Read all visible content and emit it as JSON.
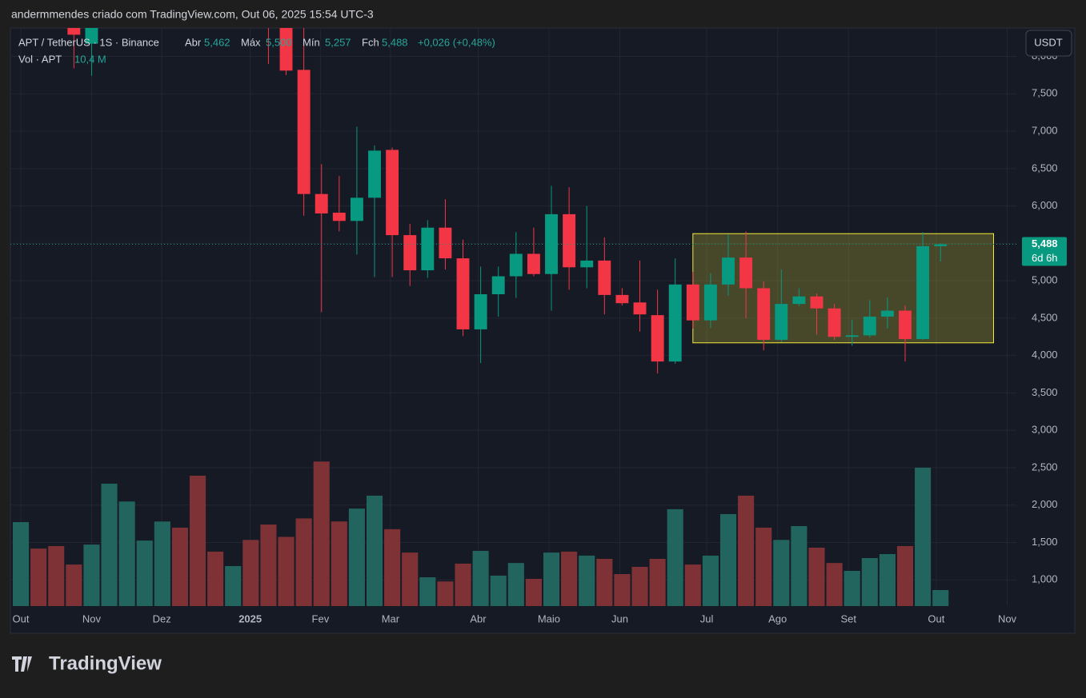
{
  "header": {
    "credit": "andermmendes criado com TradingView.com, Out 06, 2025 15:54 UTC-3",
    "symbol": "APT / TetherUS · 1S · Binance",
    "open_label": "Abr",
    "open": "5,462",
    "high_label": "Máx",
    "high": "5,500",
    "low_label": "Mín",
    "low": "5,257",
    "close_label": "Fch",
    "close": "5,488",
    "change": "+0,026 (+0,48%)",
    "volume_label": "Vol · APT",
    "volume": "10,4 M",
    "currency": "USDT",
    "brand": "TradingView"
  },
  "chart_data": {
    "type": "candlestick",
    "xlim": [
      -0.59,
      56.29
    ],
    "xticks": [
      {
        "value": 0,
        "label": "Out"
      },
      {
        "value": 4,
        "label": "Nov"
      },
      {
        "value": 7.97,
        "label": "Dez"
      },
      {
        "value": 12.97,
        "label": "2025"
      },
      {
        "value": 16.94,
        "label": "Fev"
      },
      {
        "value": 20.9,
        "label": "Mar"
      },
      {
        "value": 25.86,
        "label": "Abr"
      },
      {
        "value": 29.86,
        "label": "Maio"
      },
      {
        "value": 33.87,
        "label": "Jun"
      },
      {
        "value": 38.78,
        "label": "Jul"
      },
      {
        "value": 42.79,
        "label": "Ago"
      },
      {
        "value": 46.8,
        "label": "Set"
      },
      {
        "value": 51.76,
        "label": "Out"
      },
      {
        "value": 55.77,
        "label": "Nov"
      }
    ],
    "ylim": [
      0.65,
      8.38
    ],
    "yticks": [
      {
        "value": 1,
        "label": "1,000"
      },
      {
        "value": 1.5,
        "label": "1,500"
      },
      {
        "value": 2,
        "label": "2,000"
      },
      {
        "value": 2.5,
        "label": "2,500"
      },
      {
        "value": 3,
        "label": "3,000"
      },
      {
        "value": 3.5,
        "label": "3,500"
      },
      {
        "value": 4,
        "label": "4,000"
      },
      {
        "value": 4.5,
        "label": "4,500"
      },
      {
        "value": 5,
        "label": "5,000"
      },
      {
        "value": 5.5,
        "label": "5,500"
      },
      {
        "value": 6,
        "label": "6,000"
      },
      {
        "value": 6.5,
        "label": "6,500"
      },
      {
        "value": 7,
        "label": "7,000"
      },
      {
        "value": 7.5,
        "label": "7,500"
      },
      {
        "value": 8,
        "label": "8,000"
      }
    ],
    "grid": true,
    "up_color": "#089981",
    "down_color": "#f23645",
    "open": [
      null,
      null,
      null,
      9.0,
      8.17,
      null,
      null,
      null,
      null,
      null,
      null,
      null,
      null,
      null,
      8.9,
      8.7,
      7.82,
      6.16,
      5.91,
      5.8,
      6.11,
      6.75,
      5.61,
      5.14,
      5.71,
      5.3,
      4.35,
      4.82,
      5.06,
      5.36,
      5.09,
      5.89,
      5.18,
      5.27,
      4.81,
      4.71,
      4.54,
      3.92,
      4.95,
      4.47,
      4.95,
      5.31,
      4.9,
      4.21,
      4.69,
      4.79,
      4.63,
      4.25,
      4.27,
      4.52,
      4.6,
      4.22,
      5.462
    ],
    "high": [
      null,
      null,
      null,
      9.4,
      9.8,
      null,
      null,
      null,
      null,
      null,
      null,
      null,
      null,
      null,
      9.7,
      8.9,
      8.4,
      6.56,
      6.4,
      7.06,
      6.81,
      6.78,
      5.76,
      5.81,
      6.09,
      5.55,
      5.19,
      5.19,
      5.65,
      5.71,
      6.27,
      6.25,
      6.0,
      5.58,
      4.9,
      5.27,
      4.88,
      5.3,
      5.12,
      5.1,
      5.62,
      5.66,
      4.99,
      5.15,
      4.9,
      4.83,
      4.69,
      4.48,
      4.74,
      4.78,
      4.67,
      5.65,
      5.5
    ],
    "low": [
      null,
      null,
      null,
      7.84,
      7.74,
      null,
      null,
      null,
      null,
      null,
      null,
      null,
      null,
      null,
      7.9,
      7.75,
      5.87,
      4.58,
      5.66,
      5.35,
      5.05,
      5.05,
      4.93,
      5.04,
      5.15,
      4.26,
      3.9,
      4.52,
      4.77,
      5.06,
      4.6,
      4.88,
      4.9,
      4.55,
      4.67,
      4.32,
      3.76,
      3.89,
      4.36,
      4.37,
      4.8,
      4.5,
      4.07,
      4.18,
      4.66,
      4.28,
      4.21,
      4.13,
      4.24,
      4.36,
      3.92,
      4.21,
      5.257
    ],
    "close": [
      null,
      null,
      null,
      8.29,
      9.5,
      null,
      null,
      null,
      null,
      null,
      null,
      null,
      null,
      null,
      8.7,
      7.81,
      6.16,
      5.9,
      5.8,
      6.11,
      6.74,
      5.61,
      5.14,
      5.71,
      5.3,
      4.35,
      4.82,
      5.06,
      5.36,
      5.09,
      5.89,
      5.18,
      5.27,
      4.81,
      4.7,
      4.55,
      3.92,
      4.95,
      4.47,
      4.95,
      5.31,
      4.9,
      4.21,
      4.69,
      4.79,
      4.63,
      4.25,
      4.27,
      4.52,
      4.6,
      4.22,
      5.462,
      5.488
    ],
    "volume": [
      54.6,
      37.4,
      39,
      27,
      40,
      79.6,
      68,
      42.6,
      55,
      51,
      84.8,
      35.4,
      26,
      43,
      53,
      45,
      57,
      94,
      55,
      63.4,
      71.8,
      50,
      34.8,
      18.7,
      16,
      27.6,
      35.9,
      19.8,
      28,
      17.7,
      34.8,
      35.4,
      32.8,
      30.7,
      20.8,
      25.5,
      30.7,
      63,
      27,
      32.8,
      59.8,
      71.8,
      51,
      43,
      52,
      38,
      28,
      22.9,
      31.2,
      33.8,
      39,
      90,
      10.4
    ],
    "volume_colors": [
      "u",
      "d",
      "d",
      "d",
      "u",
      "u",
      "u",
      "u",
      "u",
      "d",
      "d",
      "d",
      "u",
      "d",
      "d",
      "d",
      "d",
      "d",
      "d",
      "u",
      "u",
      "d",
      "d",
      "u",
      "d",
      "d",
      "u",
      "u",
      "u",
      "d",
      "u",
      "d",
      "u",
      "d",
      "d",
      "d",
      "d",
      "u",
      "d",
      "u",
      "u",
      "d",
      "d",
      "u",
      "u",
      "d",
      "d",
      "u",
      "u",
      "u",
      "d",
      "u",
      "u"
    ],
    "volume_up_color": "#22655f",
    "volume_down_color": "#7f3236",
    "vol_ylim": [
      0,
      376
    ],
    "last_price": 5.488,
    "last_price_label": "5,488",
    "countdown": "6d 6h",
    "box": {
      "x": [
        38,
        55
      ],
      "y": [
        4.17,
        5.63
      ]
    }
  }
}
